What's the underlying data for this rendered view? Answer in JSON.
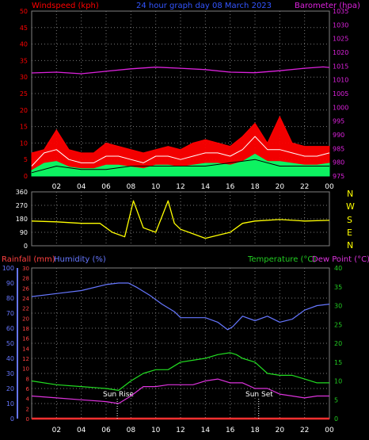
{
  "colors": {
    "background": "#000000",
    "frame": "#808080",
    "grid": "#777777",
    "wind_speed": "#ff0000",
    "wind_gust": "#ffffff",
    "wind_avg": "#00ff66",
    "barometer": "#dd22dd",
    "direction": "#ffff00",
    "rain": "#ff3030",
    "humidity": "#6677ff",
    "temperature": "#22dd22",
    "dewpoint": "#dd33dd",
    "rain_axis": "#ff4040",
    "humidity_axis": "#6677ff",
    "temp_axis": "#22cc22",
    "tick_text": "#ffffff",
    "sun_text": "#ffffff"
  },
  "header": {
    "windspeed_label": "Windspeed (kph)",
    "title": "24 hour graph day  08 March 2023",
    "barometer_label": "Barometer (hpa)"
  },
  "mid_header": {
    "rain_label": "Rainfall (mm)",
    "humidity_label": "Humidity (%)",
    "temperature_label": "Temperature (°C)",
    "dewpoint_label": "Dew Point (°C)"
  },
  "sun": {
    "rise_label": "Sun Rise",
    "set_label": "Sun Set",
    "rise_hour": 6.9,
    "set_hour": 18.3
  },
  "compass": [
    "N",
    "W",
    "S",
    "E",
    "N"
  ],
  "chart_data": [
    {
      "type": "line",
      "title": "24 hour graph day  08 March 2023",
      "x_ticks": [
        "02",
        "04",
        "06",
        "08",
        "10",
        "12",
        "14",
        "16",
        "18",
        "20",
        "22",
        "00"
      ],
      "xlim": [
        0,
        24
      ],
      "left_axis": {
        "label": "Windspeed (kph)",
        "ylim": [
          0,
          50
        ],
        "ticks": [
          0,
          5,
          10,
          15,
          20,
          25,
          30,
          35,
          40,
          45,
          50
        ]
      },
      "right_axis": {
        "label": "Barometer (hpa)",
        "ylim": [
          975,
          1035
        ],
        "ticks": [
          975,
          980,
          985,
          990,
          995,
          1000,
          1005,
          1010,
          1015,
          1020,
          1025,
          1030,
          1035
        ]
      },
      "series": [
        {
          "name": "Barometer (hpa)",
          "axis": "right",
          "x": [
            0,
            2,
            4,
            6,
            8,
            10,
            12,
            14,
            16,
            18,
            20,
            22,
            23.5,
            24
          ],
          "values": [
            1012.5,
            1012.8,
            1012.2,
            1013.1,
            1014.0,
            1014.6,
            1014.2,
            1013.7,
            1012.8,
            1012.6,
            1013.3,
            1014.2,
            1014.7,
            1014.5
          ]
        },
        {
          "name": "Wind speed",
          "axis": "left",
          "x": [
            0,
            1,
            2,
            3,
            4,
            5,
            6,
            7,
            8,
            9,
            10,
            11,
            12,
            13,
            14,
            15,
            16,
            17,
            18,
            19,
            20,
            21,
            22,
            23,
            24
          ],
          "values": [
            3,
            7,
            8,
            5,
            4,
            4,
            6,
            6,
            5,
            4,
            6,
            6,
            5,
            6,
            7,
            7,
            6,
            8,
            12,
            8,
            8,
            7,
            6,
            6,
            7
          ]
        },
        {
          "name": "Wind gust",
          "axis": "left",
          "x": [
            0,
            1,
            2,
            3,
            4,
            5,
            6,
            7,
            8,
            9,
            10,
            11,
            12,
            13,
            14,
            15,
            16,
            17,
            18,
            19,
            20,
            21,
            22,
            23,
            24
          ],
          "values": [
            7,
            8,
            14,
            8,
            7,
            7,
            10,
            9,
            8,
            7,
            8,
            9,
            8,
            10,
            11,
            10,
            9,
            12,
            16,
            10,
            18,
            10,
            9,
            9,
            9
          ]
        },
        {
          "name": "Average speed",
          "axis": "left",
          "x": [
            0,
            2,
            4,
            6,
            8,
            10,
            12,
            14,
            16,
            18,
            20,
            22,
            24
          ],
          "values": [
            1,
            3,
            2,
            2,
            3,
            3,
            3,
            3,
            4,
            5,
            3,
            3,
            3
          ]
        }
      ]
    },
    {
      "type": "line",
      "x_ticks": [
        "02",
        "04",
        "06",
        "08",
        "10",
        "12",
        "14",
        "16",
        "18",
        "20",
        "22",
        "00"
      ],
      "xlim": [
        0,
        24
      ],
      "left_axis": {
        "ylim": [
          0,
          360
        ],
        "ticks": [
          0,
          90,
          180,
          270,
          360
        ]
      },
      "series": [
        {
          "name": "Wind direction",
          "x": [
            0,
            2,
            4,
            5.5,
            6.5,
            7.5,
            8.2,
            9,
            10,
            11,
            11.5,
            12,
            13,
            14,
            15,
            16,
            17,
            18,
            20,
            22,
            24
          ],
          "values": [
            165,
            160,
            150,
            150,
            90,
            60,
            300,
            120,
            90,
            300,
            150,
            110,
            80,
            50,
            70,
            90,
            150,
            165,
            175,
            165,
            170
          ]
        }
      ]
    },
    {
      "type": "line",
      "x_ticks": [
        "02",
        "04",
        "06",
        "08",
        "10",
        "12",
        "14",
        "16",
        "18",
        "20",
        "22",
        "00"
      ],
      "xlim": [
        0,
        24
      ],
      "rain_axis": {
        "label": "Rainfall (mm)",
        "ylim": [
          0,
          30
        ],
        "ticks": [
          0,
          2,
          4,
          6,
          8,
          10,
          12,
          14,
          16,
          18,
          20,
          22,
          24,
          26,
          28,
          30
        ]
      },
      "humidity_axis": {
        "label": "Humidity (%)",
        "ylim": [
          0,
          100
        ],
        "ticks": [
          0,
          10,
          20,
          30,
          40,
          50,
          60,
          70,
          80,
          90,
          100
        ]
      },
      "temp_axis": {
        "label": "Temperature (°C)",
        "ylim": [
          0,
          40
        ],
        "ticks": [
          0,
          5,
          10,
          15,
          20,
          25,
          30,
          35,
          40
        ]
      },
      "series": [
        {
          "name": "Humidity (%)",
          "axis": "humidity",
          "x": [
            0,
            2,
            4,
            6,
            7,
            7.8,
            8.5,
            9.5,
            10.5,
            11.5,
            12,
            13,
            14,
            15,
            15.8,
            16.2,
            17,
            18,
            19,
            20,
            21,
            22,
            23,
            24
          ],
          "values": [
            81,
            83,
            85,
            89,
            90,
            90,
            87,
            82,
            76,
            71,
            67,
            67,
            67,
            64,
            59,
            61,
            68,
            65,
            68,
            64,
            66,
            72,
            75,
            76
          ]
        },
        {
          "name": "Temperature (°C)",
          "axis": "temp",
          "x": [
            0,
            2,
            4,
            6,
            7,
            8,
            9,
            10,
            11,
            12,
            13,
            14,
            15,
            16,
            16.5,
            17,
            18,
            19,
            20,
            21,
            22,
            23,
            24
          ],
          "values": [
            10,
            9,
            8.5,
            8,
            7.5,
            10,
            12,
            13,
            13,
            15,
            15.5,
            16,
            17,
            17.5,
            17,
            16,
            15,
            12,
            11.5,
            11.5,
            10.5,
            9.5,
            9.5
          ]
        },
        {
          "name": "Dew Point (°C)",
          "axis": "temp",
          "x": [
            0,
            2,
            4,
            6,
            7,
            8,
            9,
            10,
            11,
            12,
            13,
            14,
            15,
            16,
            17,
            18,
            19,
            20,
            21,
            22,
            23,
            24
          ],
          "values": [
            6,
            5.5,
            5,
            4.5,
            4,
            6,
            8.5,
            8.5,
            9,
            9,
            9,
            10,
            10.5,
            9.5,
            9.5,
            8,
            8,
            6.5,
            6,
            5.5,
            6,
            6
          ]
        },
        {
          "name": "Rainfall (mm)",
          "axis": "rain",
          "x": [
            0,
            24
          ],
          "values": [
            0,
            0
          ]
        }
      ]
    }
  ]
}
